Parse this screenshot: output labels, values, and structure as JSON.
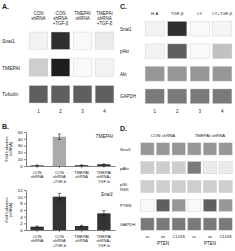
{
  "chart_data": [
    {
      "type": "blot",
      "title": "A.",
      "columns": [
        "CON\nshRNA",
        "CON\nshRNA\n+TGF-β",
        "TMEPAI\nshRNA",
        "TMEPAI\nshRNA\n+TGF-β"
      ],
      "rows": [
        "Snai1",
        "TMEPAI",
        "Tubulin"
      ],
      "cells": [
        [
          0.1,
          0.85,
          0.05,
          0.15
        ],
        [
          0.3,
          0.9,
          0.05,
          0.1
        ],
        [
          0.7,
          0.7,
          0.7,
          0.7
        ]
      ],
      "lane_labels": [
        "1",
        "2",
        "3",
        "4"
      ]
    },
    {
      "type": "bar",
      "annotations": [
        "B."
      ],
      "title": "TMEPAI",
      "ylabel": "Fold Induction\n(mRNA)",
      "categories": [
        "CON\nshRNA",
        "CON\nshRNA\n+TGF-b",
        "TMEPAI\nshRNA",
        "TMEPAI\nshRNA+\nTGF-b"
      ],
      "values": [
        1.0,
        43.0,
        1.2,
        2.5
      ],
      "errors": [
        0.3,
        4.0,
        0.2,
        0.5
      ],
      "colors": [
        "#555555",
        "#aaaaaa",
        "#333333",
        "#333333"
      ],
      "ylim": [
        0,
        50
      ],
      "yticks": [
        0,
        10,
        20,
        30,
        40,
        50
      ]
    },
    {
      "type": "bar",
      "title": "Snai1",
      "ylabel": "Fold Induction\n(mRNA)",
      "categories": [
        "CON\nshRNA",
        "CON\nshRNA\n+TGF-b",
        "TMEPAI\nshRNA",
        "TMEPAI\nshRNA+\nTGF-b"
      ],
      "values": [
        1.0,
        10.0,
        1.2,
        5.0
      ],
      "errors": [
        0.2,
        1.0,
        0.2,
        0.8
      ],
      "colors": [
        "#333333",
        "#333333",
        "#333333",
        "#333333"
      ],
      "ylim": [
        0,
        12
      ],
      "yticks": [
        0,
        2,
        4,
        6,
        8,
        10,
        12
      ]
    },
    {
      "type": "blot",
      "title": "C.",
      "columns": [
        "H.A",
        "TGF-β",
        "LY",
        "LY+TGF-β"
      ],
      "rows": [
        "Snai1",
        "pAkt",
        "Akt",
        "GAPDH"
      ],
      "cells": [
        [
          0.1,
          0.85,
          0.05,
          0.08
        ],
        [
          0.1,
          0.7,
          0.05,
          0.35
        ],
        [
          0.5,
          0.5,
          0.5,
          0.5
        ],
        [
          0.6,
          0.6,
          0.6,
          0.6
        ]
      ],
      "lane_labels": [
        "1",
        "2",
        "3",
        "4"
      ]
    },
    {
      "type": "blot",
      "title": "D.",
      "groups": [
        "CON shRNA",
        "TMEPAI shRNA"
      ],
      "columns": [
        "sc",
        "wt",
        "C124S",
        "sc",
        "wt",
        "C124S"
      ],
      "rows": [
        "Snai1",
        "pAkt",
        "p90\nRSK",
        "PTEN",
        "GAPDH"
      ],
      "cells": [
        [
          0.5,
          0.5,
          0.5,
          0.5,
          0.5,
          0.5
        ],
        [
          0.3,
          0.3,
          0.3,
          0.6,
          0.15,
          0.15
        ],
        [
          0.3,
          0.3,
          0.3,
          0.3,
          0.3,
          0.3
        ],
        [
          0.05,
          0.7,
          0.5,
          0.05,
          0.7,
          0.5
        ],
        [
          0.6,
          0.6,
          0.6,
          0.6,
          0.6,
          0.6
        ]
      ],
      "bottom_labels": [
        "PTEN",
        "PTEN"
      ]
    }
  ]
}
